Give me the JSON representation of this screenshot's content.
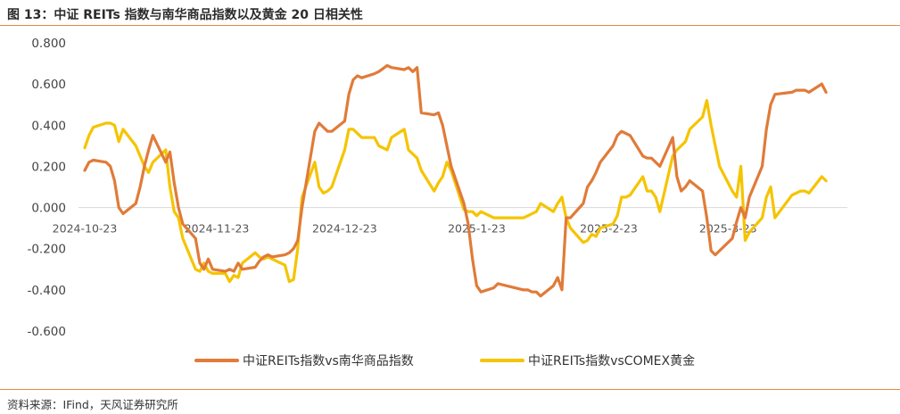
{
  "figure": {
    "title": "图 13：中证 REITs 指数与南华商品指数以及黄金 20 日相关性",
    "source": "资料来源：IFind，天风证券研究所"
  },
  "colors": {
    "series1": "#e07b39",
    "series2": "#f5c400",
    "axis": "#d9d9d9"
  },
  "chart_data": {
    "type": "line",
    "title": "",
    "xlabel": "",
    "ylabel": "",
    "ylim": [
      -0.6,
      0.8
    ],
    "y_ticks": [
      0.8,
      0.6,
      0.4,
      0.2,
      0.0,
      -0.2,
      -0.4,
      -0.6
    ],
    "y_tick_labels": [
      "0.800",
      "0.600",
      "0.400",
      "0.200",
      "0.000",
      "-0.200",
      "-0.400",
      "-0.600"
    ],
    "x_tick_labels": [
      {
        "date": "2024-10-23",
        "label": "2024-10-23"
      },
      {
        "date": "2024-11-23",
        "label": "2024-11-23"
      },
      {
        "date": "2024-12-23",
        "label": "2024-12-23"
      },
      {
        "date": "2025-01-23",
        "label": "2025-1-23"
      },
      {
        "date": "2025-02-23",
        "label": "2025-2-23"
      },
      {
        "date": "2025-03-23",
        "label": "2025-3-23"
      }
    ],
    "xlim": [
      "2024-10-23",
      "2025-04-20"
    ],
    "grid": false,
    "legend": "bottom",
    "series": [
      {
        "name": "中证REITs指数vs南华商品指数",
        "points": [
          [
            "2024-10-23",
            0.18
          ],
          [
            "2024-10-24",
            0.22
          ],
          [
            "2024-10-25",
            0.23
          ],
          [
            "2024-10-28",
            0.22
          ],
          [
            "2024-10-29",
            0.2
          ],
          [
            "2024-10-30",
            0.13
          ],
          [
            "2024-10-31",
            0.0
          ],
          [
            "2024-11-01",
            -0.03
          ],
          [
            "2024-11-04",
            0.02
          ],
          [
            "2024-11-05",
            0.1
          ],
          [
            "2024-11-06",
            0.2
          ],
          [
            "2024-11-07",
            0.28
          ],
          [
            "2024-11-08",
            0.35
          ],
          [
            "2024-11-11",
            0.22
          ],
          [
            "2024-11-12",
            0.27
          ],
          [
            "2024-11-13",
            0.12
          ],
          [
            "2024-11-14",
            0.0
          ],
          [
            "2024-11-15",
            -0.08
          ],
          [
            "2024-11-18",
            -0.15
          ],
          [
            "2024-11-19",
            -0.27
          ],
          [
            "2024-11-20",
            -0.3
          ],
          [
            "2024-11-21",
            -0.25
          ],
          [
            "2024-11-22",
            -0.3
          ],
          [
            "2024-11-25",
            -0.31
          ],
          [
            "2024-11-26",
            -0.3
          ],
          [
            "2024-11-27",
            -0.31
          ],
          [
            "2024-11-28",
            -0.27
          ],
          [
            "2024-11-29",
            -0.3
          ],
          [
            "2024-12-02",
            -0.29
          ],
          [
            "2024-12-03",
            -0.26
          ],
          [
            "2024-12-04",
            -0.24
          ],
          [
            "2024-12-05",
            -0.23
          ],
          [
            "2024-12-06",
            -0.24
          ],
          [
            "2024-12-09",
            -0.23
          ],
          [
            "2024-12-10",
            -0.22
          ],
          [
            "2024-12-11",
            -0.2
          ],
          [
            "2024-12-12",
            -0.16
          ],
          [
            "2024-12-13",
            0.0
          ],
          [
            "2024-12-16",
            0.37
          ],
          [
            "2024-12-17",
            0.41
          ],
          [
            "2024-12-18",
            0.39
          ],
          [
            "2024-12-19",
            0.37
          ],
          [
            "2024-12-20",
            0.37
          ],
          [
            "2024-12-23",
            0.42
          ],
          [
            "2024-12-24",
            0.55
          ],
          [
            "2024-12-25",
            0.62
          ],
          [
            "2024-12-26",
            0.64
          ],
          [
            "2024-12-27",
            0.63
          ],
          [
            "2024-12-30",
            0.65
          ],
          [
            "2024-12-31",
            0.66
          ],
          [
            "2025-01-02",
            0.69
          ],
          [
            "2025-01-03",
            0.68
          ],
          [
            "2025-01-06",
            0.67
          ],
          [
            "2025-01-07",
            0.68
          ],
          [
            "2025-01-08",
            0.66
          ],
          [
            "2025-01-09",
            0.68
          ],
          [
            "2025-01-10",
            0.46
          ],
          [
            "2025-01-13",
            0.45
          ],
          [
            "2025-01-14",
            0.46
          ],
          [
            "2025-01-15",
            0.4
          ],
          [
            "2025-01-16",
            0.3
          ],
          [
            "2025-01-17",
            0.2
          ],
          [
            "2025-01-20",
            0.02
          ],
          [
            "2025-01-21",
            -0.08
          ],
          [
            "2025-01-22",
            -0.25
          ],
          [
            "2025-01-23",
            -0.38
          ],
          [
            "2025-01-24",
            -0.41
          ],
          [
            "2025-01-27",
            -0.39
          ],
          [
            "2025-01-28",
            -0.37
          ],
          [
            "2025-02-03",
            -0.4
          ],
          [
            "2025-02-04",
            -0.4
          ],
          [
            "2025-02-05",
            -0.41
          ],
          [
            "2025-02-06",
            -0.41
          ],
          [
            "2025-02-07",
            -0.43
          ],
          [
            "2025-02-10",
            -0.38
          ],
          [
            "2025-02-11",
            -0.34
          ],
          [
            "2025-02-12",
            -0.4
          ],
          [
            "2025-02-13",
            -0.05
          ],
          [
            "2025-02-14",
            -0.05
          ],
          [
            "2025-02-17",
            0.02
          ],
          [
            "2025-02-18",
            0.1
          ],
          [
            "2025-02-19",
            0.13
          ],
          [
            "2025-02-20",
            0.17
          ],
          [
            "2025-02-21",
            0.22
          ],
          [
            "2025-02-24",
            0.3
          ],
          [
            "2025-02-25",
            0.35
          ],
          [
            "2025-02-26",
            0.37
          ],
          [
            "2025-02-27",
            0.36
          ],
          [
            "2025-02-28",
            0.35
          ],
          [
            "2025-03-03",
            0.25
          ],
          [
            "2025-03-04",
            0.24
          ],
          [
            "2025-03-05",
            0.24
          ],
          [
            "2025-03-06",
            0.22
          ],
          [
            "2025-03-07",
            0.2
          ],
          [
            "2025-03-10",
            0.34
          ],
          [
            "2025-03-11",
            0.15
          ],
          [
            "2025-03-12",
            0.08
          ],
          [
            "2025-03-13",
            0.1
          ],
          [
            "2025-03-14",
            0.13
          ],
          [
            "2025-03-17",
            0.08
          ],
          [
            "2025-03-18",
            -0.05
          ],
          [
            "2025-03-19",
            -0.21
          ],
          [
            "2025-03-20",
            -0.23
          ],
          [
            "2025-03-21",
            -0.21
          ],
          [
            "2025-03-24",
            -0.15
          ],
          [
            "2025-03-25",
            -0.07
          ],
          [
            "2025-03-26",
            0.0
          ],
          [
            "2025-03-27",
            -0.05
          ],
          [
            "2025-03-28",
            0.05
          ],
          [
            "2025-03-31",
            0.2
          ],
          [
            "2025-04-01",
            0.38
          ],
          [
            "2025-04-02",
            0.5
          ],
          [
            "2025-04-03",
            0.55
          ],
          [
            "2025-04-07",
            0.56
          ],
          [
            "2025-04-08",
            0.57
          ],
          [
            "2025-04-09",
            0.57
          ],
          [
            "2025-04-10",
            0.57
          ],
          [
            "2025-04-11",
            0.56
          ],
          [
            "2025-04-14",
            0.6
          ],
          [
            "2025-04-15",
            0.56
          ]
        ]
      },
      {
        "name": "中证REITs指数vsCOMEX黄金",
        "points": [
          [
            "2024-10-23",
            0.29
          ],
          [
            "2024-10-24",
            0.35
          ],
          [
            "2024-10-25",
            0.39
          ],
          [
            "2024-10-28",
            0.41
          ],
          [
            "2024-10-29",
            0.41
          ],
          [
            "2024-10-30",
            0.4
          ],
          [
            "2024-10-31",
            0.32
          ],
          [
            "2024-11-01",
            0.38
          ],
          [
            "2024-11-04",
            0.3
          ],
          [
            "2024-11-05",
            0.25
          ],
          [
            "2024-11-06",
            0.2
          ],
          [
            "2024-11-07",
            0.17
          ],
          [
            "2024-11-08",
            0.22
          ],
          [
            "2024-11-11",
            0.28
          ],
          [
            "2024-11-12",
            0.1
          ],
          [
            "2024-11-13",
            -0.02
          ],
          [
            "2024-11-14",
            -0.05
          ],
          [
            "2024-11-15",
            -0.15
          ],
          [
            "2024-11-18",
            -0.3
          ],
          [
            "2024-11-19",
            -0.31
          ],
          [
            "2024-11-20",
            -0.27
          ],
          [
            "2024-11-21",
            -0.31
          ],
          [
            "2024-11-22",
            -0.32
          ],
          [
            "2024-11-25",
            -0.32
          ],
          [
            "2024-11-26",
            -0.36
          ],
          [
            "2024-11-27",
            -0.33
          ],
          [
            "2024-11-28",
            -0.34
          ],
          [
            "2024-11-29",
            -0.27
          ],
          [
            "2024-12-02",
            -0.22
          ],
          [
            "2024-12-03",
            -0.24
          ],
          [
            "2024-12-04",
            -0.25
          ],
          [
            "2024-12-05",
            -0.24
          ],
          [
            "2024-12-06",
            -0.25
          ],
          [
            "2024-12-09",
            -0.28
          ],
          [
            "2024-12-10",
            -0.36
          ],
          [
            "2024-12-11",
            -0.35
          ],
          [
            "2024-12-12",
            -0.2
          ],
          [
            "2024-12-13",
            0.05
          ],
          [
            "2024-12-16",
            0.22
          ],
          [
            "2024-12-17",
            0.1
          ],
          [
            "2024-12-18",
            0.07
          ],
          [
            "2024-12-19",
            0.08
          ],
          [
            "2024-12-20",
            0.1
          ],
          [
            "2024-12-23",
            0.28
          ],
          [
            "2024-12-24",
            0.38
          ],
          [
            "2024-12-25",
            0.38
          ],
          [
            "2024-12-26",
            0.36
          ],
          [
            "2024-12-27",
            0.34
          ],
          [
            "2024-12-30",
            0.34
          ],
          [
            "2024-12-31",
            0.3
          ],
          [
            "2025-01-02",
            0.28
          ],
          [
            "2025-01-03",
            0.34
          ],
          [
            "2025-01-06",
            0.38
          ],
          [
            "2025-01-07",
            0.28
          ],
          [
            "2025-01-08",
            0.26
          ],
          [
            "2025-01-09",
            0.24
          ],
          [
            "2025-01-10",
            0.18
          ],
          [
            "2025-01-13",
            0.08
          ],
          [
            "2025-01-14",
            0.12
          ],
          [
            "2025-01-15",
            0.15
          ],
          [
            "2025-01-16",
            0.22
          ],
          [
            "2025-01-17",
            0.18
          ],
          [
            "2025-01-20",
            -0.01
          ],
          [
            "2025-01-21",
            -0.02
          ],
          [
            "2025-01-22",
            -0.02
          ],
          [
            "2025-01-23",
            -0.04
          ],
          [
            "2025-01-24",
            -0.02
          ],
          [
            "2025-01-27",
            -0.05
          ],
          [
            "2025-01-28",
            -0.05
          ],
          [
            "2025-02-03",
            -0.05
          ],
          [
            "2025-02-04",
            -0.04
          ],
          [
            "2025-02-05",
            -0.03
          ],
          [
            "2025-02-06",
            -0.02
          ],
          [
            "2025-02-07",
            0.02
          ],
          [
            "2025-02-10",
            -0.02
          ],
          [
            "2025-02-11",
            0.02
          ],
          [
            "2025-02-12",
            0.05
          ],
          [
            "2025-02-13",
            -0.05
          ],
          [
            "2025-02-14",
            -0.1
          ],
          [
            "2025-02-17",
            -0.17
          ],
          [
            "2025-02-18",
            -0.16
          ],
          [
            "2025-02-19",
            -0.13
          ],
          [
            "2025-02-20",
            -0.14
          ],
          [
            "2025-02-21",
            -0.1
          ],
          [
            "2025-02-24",
            -0.08
          ],
          [
            "2025-02-25",
            -0.04
          ],
          [
            "2025-02-26",
            0.05
          ],
          [
            "2025-02-27",
            0.05
          ],
          [
            "2025-02-28",
            0.06
          ],
          [
            "2025-03-03",
            0.15
          ],
          [
            "2025-03-04",
            0.08
          ],
          [
            "2025-03-05",
            0.08
          ],
          [
            "2025-03-06",
            0.05
          ],
          [
            "2025-03-07",
            -0.02
          ],
          [
            "2025-03-10",
            0.25
          ],
          [
            "2025-03-11",
            0.28
          ],
          [
            "2025-03-12",
            0.3
          ],
          [
            "2025-03-13",
            0.32
          ],
          [
            "2025-03-14",
            0.38
          ],
          [
            "2025-03-17",
            0.44
          ],
          [
            "2025-03-18",
            0.52
          ],
          [
            "2025-03-19",
            0.4
          ],
          [
            "2025-03-20",
            0.3
          ],
          [
            "2025-03-21",
            0.2
          ],
          [
            "2025-03-24",
            0.08
          ],
          [
            "2025-03-25",
            0.05
          ],
          [
            "2025-03-26",
            0.2
          ],
          [
            "2025-03-27",
            -0.16
          ],
          [
            "2025-03-28",
            -0.12
          ],
          [
            "2025-03-31",
            -0.05
          ],
          [
            "2025-04-01",
            0.05
          ],
          [
            "2025-04-02",
            0.1
          ],
          [
            "2025-04-03",
            -0.05
          ],
          [
            "2025-04-07",
            0.06
          ],
          [
            "2025-04-08",
            0.07
          ],
          [
            "2025-04-09",
            0.08
          ],
          [
            "2025-04-10",
            0.08
          ],
          [
            "2025-04-11",
            0.07
          ],
          [
            "2025-04-14",
            0.15
          ],
          [
            "2025-04-15",
            0.13
          ]
        ]
      }
    ]
  }
}
